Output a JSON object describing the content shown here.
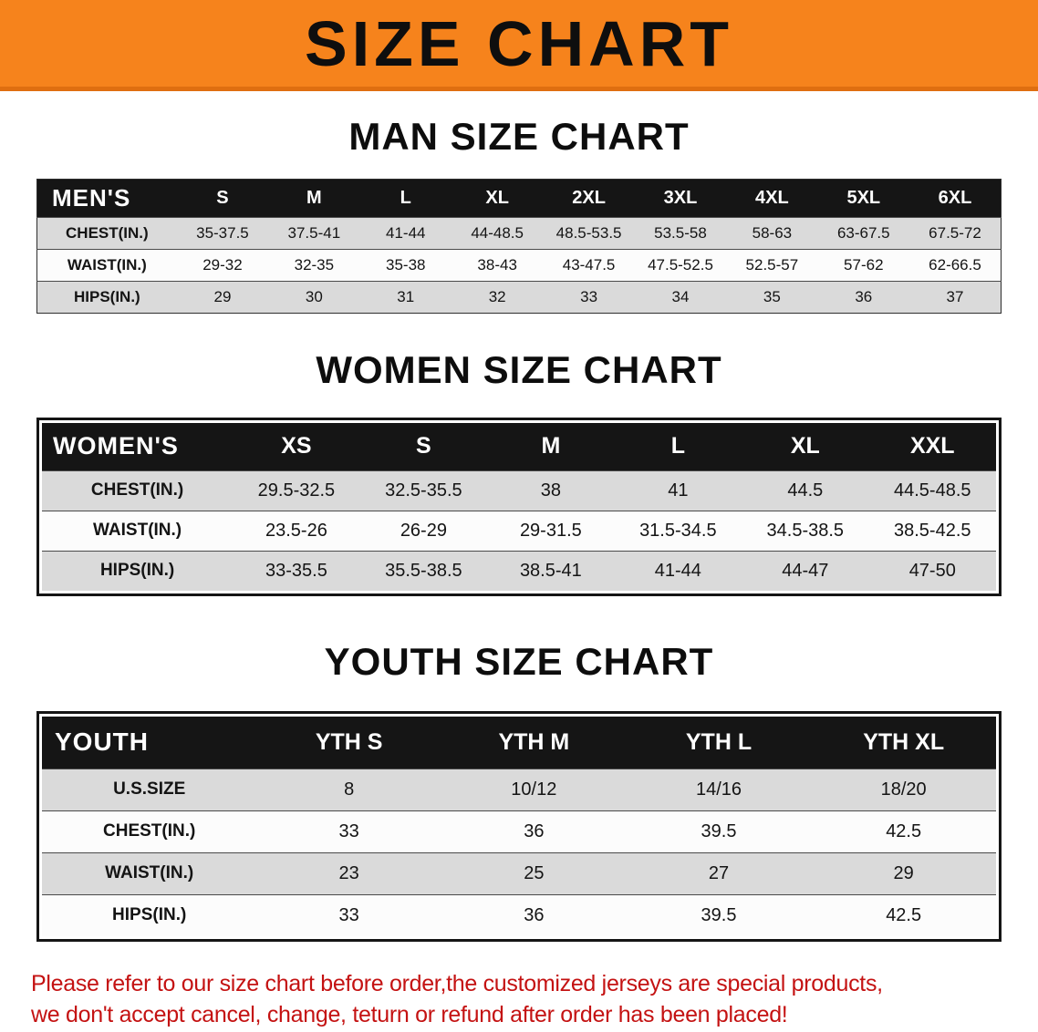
{
  "banner": {
    "title": "SIZE CHART"
  },
  "chart_data": [
    {
      "type": "table",
      "title": "MAN SIZE CHART",
      "header": [
        "MEN'S",
        "S",
        "M",
        "L",
        "XL",
        "2XL",
        "3XL",
        "4XL",
        "5XL",
        "6XL"
      ],
      "rows": [
        [
          "CHEST(IN.)",
          "35-37.5",
          "37.5-41",
          "41-44",
          "44-48.5",
          "48.5-53.5",
          "53.5-58",
          "58-63",
          "63-67.5",
          "67.5-72"
        ],
        [
          "WAIST(IN.)",
          "29-32",
          "32-35",
          "35-38",
          "38-43",
          "43-47.5",
          "47.5-52.5",
          "52.5-57",
          "57-62",
          "62-66.5"
        ],
        [
          "HIPS(IN.)",
          "29",
          "30",
          "31",
          "32",
          "33",
          "34",
          "35",
          "36",
          "37"
        ]
      ]
    },
    {
      "type": "table",
      "title": "WOMEN SIZE CHART",
      "header": [
        "WOMEN'S",
        "XS",
        "S",
        "M",
        "L",
        "XL",
        "XXL"
      ],
      "rows": [
        [
          "CHEST(IN.)",
          "29.5-32.5",
          "32.5-35.5",
          "38",
          "41",
          "44.5",
          "44.5-48.5"
        ],
        [
          "WAIST(IN.)",
          "23.5-26",
          "26-29",
          "29-31.5",
          "31.5-34.5",
          "34.5-38.5",
          "38.5-42.5"
        ],
        [
          "HIPS(IN.)",
          "33-35.5",
          "35.5-38.5",
          "38.5-41",
          "41-44",
          "44-47",
          "47-50"
        ]
      ]
    },
    {
      "type": "table",
      "title": "YOUTH SIZE CHART",
      "header": [
        "YOUTH",
        "YTH S",
        "YTH M",
        "YTH L",
        "YTH XL"
      ],
      "rows": [
        [
          "U.S.SIZE",
          "8",
          "10/12",
          "14/16",
          "18/20"
        ],
        [
          "CHEST(IN.)",
          "33",
          "36",
          "39.5",
          "42.5"
        ],
        [
          "WAIST(IN.)",
          "23",
          "25",
          "27",
          "29"
        ],
        [
          "HIPS(IN.)",
          "33",
          "36",
          "39.5",
          "42.5"
        ]
      ]
    }
  ],
  "footer": {
    "line1": "Please refer to our size chart before order,the customized jerseys are special products,",
    "line2": "we don't accept cancel, change, teturn or refund after order has been placed!"
  },
  "colors": {
    "banner_bg": "#F6831C",
    "banner_edge": "#DF6E10",
    "table_header_bg": "#151515",
    "row_shaded": "#DADADA",
    "row_plain": "#FCFCFC",
    "note_red": "#C41212"
  }
}
